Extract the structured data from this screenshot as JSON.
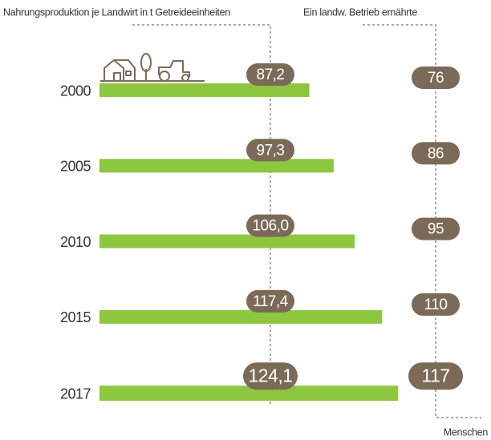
{
  "chart_data": {
    "type": "bar",
    "categories": [
      "2000",
      "2005",
      "2010",
      "2015",
      "2017"
    ],
    "series": [
      {
        "name": "Nahrungsproduktion je Landwirt in t Getreideeinheiten",
        "color": "#8dc63f",
        "values": [
          87.2,
          97.3,
          106.0,
          117.4,
          124.1
        ],
        "value_labels": [
          "87,2",
          "97,3",
          "106,0",
          "117,4",
          "124,1"
        ]
      },
      {
        "name": "Ein landw. Betrieb ernährte",
        "color": "#7b6a58",
        "values": [
          76,
          86,
          95,
          110,
          117
        ]
      }
    ],
    "unit_label": "Menschen"
  }
}
